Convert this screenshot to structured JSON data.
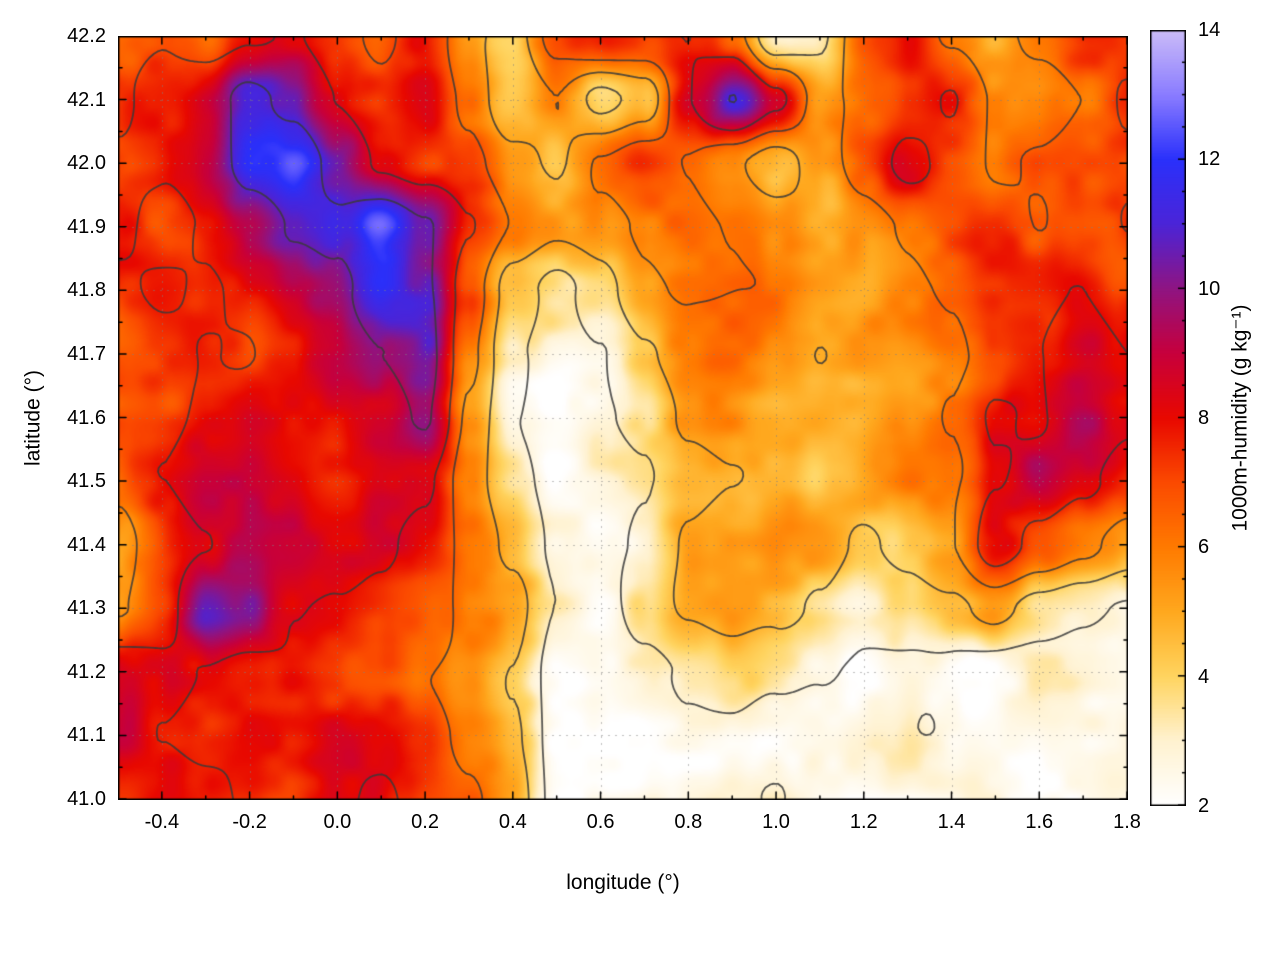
{
  "figure": {
    "background": "#ffffff"
  },
  "chart_data": {
    "type": "heatmap",
    "title": "",
    "xlabel": "longitude (°)",
    "ylabel": "latitude (°)",
    "colorbar_label": "1000m-humidity (g kg⁻¹)",
    "xlim": [
      -0.5,
      1.8
    ],
    "ylim": [
      41.0,
      42.2
    ],
    "zlim": [
      2,
      14
    ],
    "grid": "dotted",
    "grid_color": "#808080",
    "contour_color": "#3a3a3a",
    "contour_levels": [
      3,
      4.5,
      6,
      7.8,
      10.5
    ],
    "xtick_values": [
      -0.4,
      -0.2,
      0.0,
      0.2,
      0.4,
      0.6,
      0.8,
      1.0,
      1.2,
      1.4,
      1.6,
      1.8
    ],
    "xtick_labels": [
      "-0.4",
      "-0.2",
      "0.0",
      "0.2",
      "0.4",
      "0.6",
      "0.8",
      "1.0",
      "1.2",
      "1.4",
      "1.6",
      "1.8"
    ],
    "ytick_values": [
      41.0,
      41.1,
      41.2,
      41.3,
      41.4,
      41.5,
      41.6,
      41.7,
      41.8,
      41.9,
      42.0,
      42.1,
      42.2
    ],
    "ytick_labels": [
      "41.0",
      "41.1",
      "41.2",
      "41.3",
      "41.4",
      "41.5",
      "41.6",
      "41.7",
      "41.8",
      "41.9",
      "42.0",
      "42.1",
      "42.2"
    ],
    "colorbar_tick_values": [
      2,
      4,
      6,
      8,
      10,
      12,
      14
    ],
    "colorbar_tick_labels": [
      "2",
      "4",
      "6",
      "8",
      "10",
      "12",
      "14"
    ],
    "colormap": [
      [
        2,
        "#ffffff"
      ],
      [
        3,
        "#fff2d0"
      ],
      [
        4,
        "#ffd45f"
      ],
      [
        5,
        "#ffa81e"
      ],
      [
        6,
        "#ff7a00"
      ],
      [
        7,
        "#fb4a00"
      ],
      [
        8,
        "#e80800"
      ],
      [
        9,
        "#c7003c"
      ],
      [
        10,
        "#8f1482"
      ],
      [
        11,
        "#4b24d8"
      ],
      [
        12,
        "#2a30fb"
      ],
      [
        13,
        "#8a7cff"
      ],
      [
        14,
        "#cbbcf8"
      ]
    ],
    "x": [
      -0.5,
      -0.4,
      -0.3,
      -0.2,
      -0.1,
      0.0,
      0.1,
      0.2,
      0.3,
      0.4,
      0.5,
      0.6,
      0.7,
      0.8,
      0.9,
      1.0,
      1.1,
      1.2,
      1.3,
      1.4,
      1.5,
      1.6,
      1.7,
      1.8
    ],
    "y_rows_top_to_bottom": [
      42.2,
      42.1,
      42.0,
      41.9,
      41.8,
      41.7,
      41.6,
      41.5,
      41.4,
      41.3,
      41.2,
      41.1,
      41.0
    ],
    "values_g_per_kg": [
      [
        7,
        7.5,
        6.5,
        7.5,
        8,
        7,
        6,
        7.5,
        5,
        4,
        7,
        8,
        7.5,
        8,
        7,
        3.5,
        4,
        7,
        7.5,
        6,
        5,
        6.5,
        7.5,
        7
      ],
      [
        7,
        8,
        9,
        11,
        10,
        8,
        7,
        8,
        6,
        3.5,
        5,
        3,
        4,
        8,
        10.5,
        8,
        5,
        6,
        7,
        8,
        6,
        5,
        6,
        8
      ],
      [
        7.5,
        8,
        9,
        11.5,
        12,
        10,
        8,
        7,
        6.5,
        5,
        4,
        6,
        7,
        6,
        5,
        4,
        5.5,
        7,
        8,
        7,
        6,
        6.5,
        7,
        7.5
      ],
      [
        8,
        7,
        8,
        9,
        10.5,
        11,
        13,
        11,
        8,
        6,
        5,
        5.5,
        6,
        6.5,
        6,
        5.5,
        5,
        5.5,
        6,
        6.5,
        7,
        6,
        7,
        8
      ],
      [
        7.5,
        8,
        7.5,
        8,
        9,
        10,
        12,
        11,
        7,
        4,
        3,
        4,
        5.5,
        6,
        6,
        6,
        5.5,
        5,
        5.5,
        6,
        7,
        7.5,
        8,
        7
      ],
      [
        7,
        7.5,
        8,
        7.5,
        8,
        9,
        10,
        11,
        6,
        3,
        2.5,
        3,
        4.5,
        5.5,
        6,
        5.5,
        5,
        5.5,
        5,
        6,
        7,
        8,
        8.5,
        7.5
      ],
      [
        6.5,
        7,
        8,
        8.5,
        8,
        8,
        9,
        10.5,
        5.5,
        3,
        2.5,
        3,
        3.5,
        5,
        5.5,
        5,
        5.5,
        5,
        5.5,
        6.5,
        8.5,
        8,
        9,
        8
      ],
      [
        6,
        7.5,
        8.5,
        9,
        8.5,
        8,
        8.5,
        8,
        5,
        3.5,
        2.5,
        2.5,
        3,
        4,
        4.5,
        5,
        4.5,
        5,
        5.5,
        6,
        8,
        9,
        8,
        7
      ],
      [
        5.5,
        7,
        8,
        9,
        9,
        8.5,
        8,
        7,
        5.5,
        4,
        2.5,
        2.5,
        3,
        4.5,
        5,
        5.5,
        5,
        4,
        4.5,
        5.5,
        8.5,
        7,
        6,
        5
      ],
      [
        6,
        7,
        10.5,
        10,
        8,
        7.5,
        7,
        6.5,
        5.5,
        5,
        3,
        2.5,
        4,
        5,
        5.5,
        5,
        4,
        3,
        3.5,
        4,
        5,
        4,
        3.5,
        3
      ],
      [
        9,
        8.5,
        8,
        7.5,
        8,
        7.5,
        7,
        6,
        5.5,
        4.5,
        2.5,
        2.5,
        3,
        3.5,
        4,
        3.5,
        3,
        2.5,
        2.5,
        2.5,
        2.5,
        2.5,
        2.5,
        2.5
      ],
      [
        9.5,
        8,
        7.5,
        8,
        7.5,
        8,
        7.5,
        7,
        6,
        5,
        2.5,
        2.5,
        2.5,
        3,
        3,
        2.5,
        2.5,
        2.5,
        2.5,
        2.5,
        2.5,
        2.5,
        2.5,
        2.5
      ],
      [
        8,
        8.5,
        8,
        7.5,
        7,
        7.5,
        8,
        7,
        6.5,
        5.5,
        2.5,
        2.5,
        2.5,
        2.5,
        3,
        3.5,
        2.5,
        2.5,
        2.5,
        2.5,
        2.5,
        2.5,
        2.5,
        2.5
      ]
    ]
  }
}
